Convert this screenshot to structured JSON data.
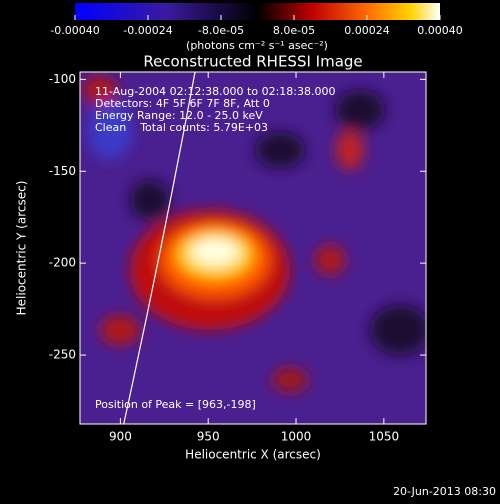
{
  "chart_data": {
    "type": "image",
    "title": "Reconstructed RHESSI Image",
    "x_label": "Heliocentric X (arcsec)",
    "y_label": "Heliocentric Y (arcsec)",
    "xlim": [
      877,
      1074
    ],
    "xticks": [
      900,
      950,
      1000,
      1050
    ],
    "ylim": [
      -287.5,
      -96
    ],
    "yticks": [
      -100,
      -150,
      -200,
      -250
    ],
    "colorbar": {
      "label": "(photons cm⁻² s⁻¹ asec⁻²)",
      "lim": [
        -0.0004,
        0.0004
      ],
      "ticks": [
        {
          "value": -0.0004,
          "label": "-0.00040"
        },
        -0.00024,
        {
          "value": -8e-05,
          "label": "-8.0e-05"
        },
        {
          "value": 8e-05,
          "label": "8.0e-05"
        },
        0.00024,
        {
          "value": 0.0004,
          "label": "0.00040"
        }
      ]
    },
    "annotations": [
      "11-Aug-2004 02:12:38.000 to 02:18:38.000",
      "Detectors: 4F 5F 6F 7F 8F, Att 0",
      "Energy Range: 12.0 - 25.0 keV",
      "Clean    Total counts: 5.79E+03"
    ],
    "peak_note": "Position of Peak = [963,-198]",
    "footer": "20-Jun-2013 08:30"
  }
}
